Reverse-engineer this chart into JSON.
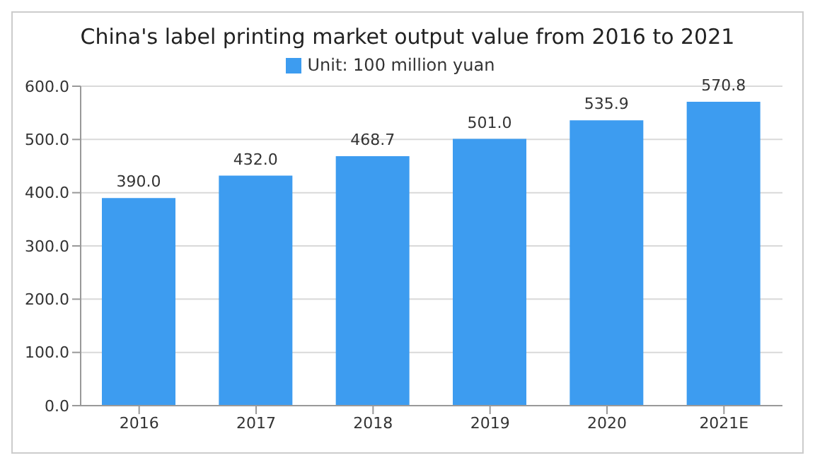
{
  "chart_data": {
    "type": "bar",
    "title": "China's label printing market output value from 2016 to 2021",
    "categories": [
      "2016",
      "2017",
      "2018",
      "2019",
      "2020",
      "2021E"
    ],
    "series": [
      {
        "name": "Unit: 100 million yuan",
        "color": "#3d9cf0",
        "values": [
          390.0,
          432.0,
          468.7,
          501.0,
          535.9,
          570.8
        ],
        "value_labels": [
          "390.0",
          "432.0",
          "468.7",
          "501.0",
          "535.9",
          "570.8"
        ]
      }
    ],
    "ylim": [
      0,
      600
    ],
    "yticks": [
      {
        "value": 0,
        "label": "0.0"
      },
      {
        "value": 100,
        "label": "100.0"
      },
      {
        "value": 200,
        "label": "200.0"
      },
      {
        "value": 300,
        "label": "300.0"
      },
      {
        "value": 400,
        "label": "400.0"
      },
      {
        "value": 500,
        "label": "500.0"
      },
      {
        "value": 600,
        "label": "600.0"
      }
    ],
    "grid": "y",
    "legend": "top"
  }
}
